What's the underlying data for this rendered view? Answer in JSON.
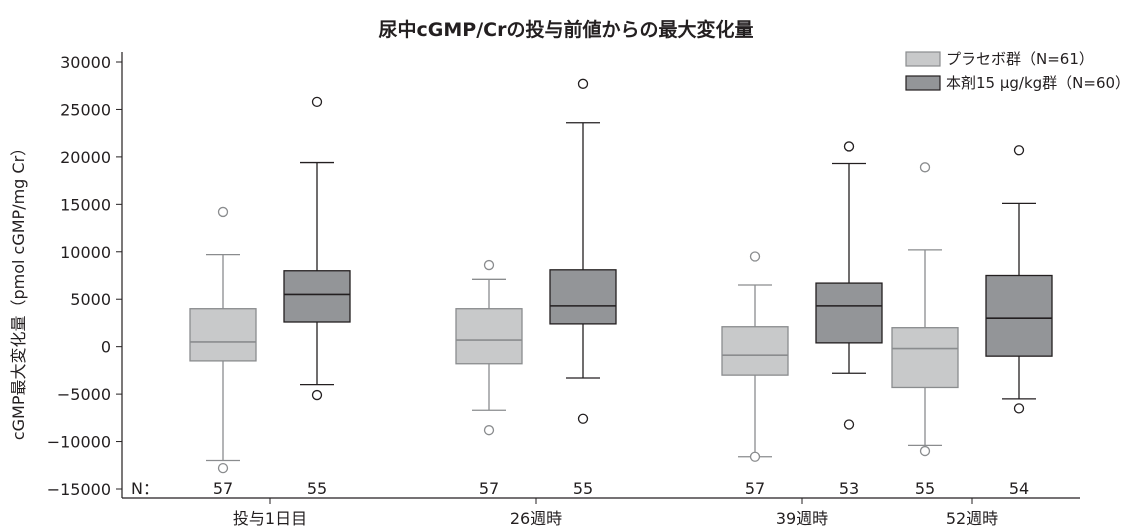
{
  "chart_data": {
    "type": "boxplot",
    "title": "尿中cGMP/Crの投与前値からの最大変化量",
    "ylabel": "cGMP最大変化量（pmol cGMP/mg Cr）",
    "xlabel": "",
    "ylim": [
      -15000,
      30000
    ],
    "yticks": [
      30000,
      25000,
      20000,
      15000,
      10000,
      5000,
      0,
      -5000,
      -10000,
      -15000
    ],
    "ytick_labels": [
      "30000",
      "25000",
      "20000",
      "15000",
      "10000",
      "5000",
      "0",
      "−5000",
      "−10000",
      "−15000"
    ],
    "categories": [
      "投与1日目",
      "26週時",
      "39週時",
      "52週時"
    ],
    "n_label": "N：",
    "legend_position": "top-right",
    "series": [
      {
        "name": "プラセボ群（N=61）",
        "color": "#c8c9ca",
        "boxes": [
          {
            "whislo": -12000,
            "q1": -1500,
            "med": 500,
            "q3": 4000,
            "whishi": 9700,
            "fliers": [
              14200,
              -12800
            ],
            "n": "57"
          },
          {
            "whislo": -6700,
            "q1": -1800,
            "med": 700,
            "q3": 4000,
            "whishi": 7100,
            "fliers": [
              8600,
              -8800
            ],
            "n": "57"
          },
          {
            "whislo": -11600,
            "q1": -3000,
            "med": -900,
            "q3": 2100,
            "whishi": 6500,
            "fliers": [
              9500,
              -11600
            ],
            "n": "57"
          },
          {
            "whislo": -10400,
            "q1": -4300,
            "med": -200,
            "q3": 2000,
            "whishi": 10200,
            "fliers": [
              18900,
              -11000
            ],
            "n": "55"
          }
        ]
      },
      {
        "name": "本剤15 µg/kg群（N=60）",
        "color": "#939598",
        "boxes": [
          {
            "whislo": -4000,
            "q1": 2600,
            "med": 5500,
            "q3": 8000,
            "whishi": 19400,
            "fliers": [
              25800,
              -5100
            ],
            "n": "55"
          },
          {
            "whislo": -3300,
            "q1": 2400,
            "med": 4300,
            "q3": 8100,
            "whishi": 23600,
            "fliers": [
              27700,
              -7600
            ],
            "n": "55"
          },
          {
            "whislo": -2800,
            "q1": 400,
            "med": 4300,
            "q3": 6700,
            "whishi": 19300,
            "fliers": [
              21100,
              -8200
            ],
            "n": "53"
          },
          {
            "whislo": -5500,
            "q1": -1000,
            "med": 3000,
            "q3": 7500,
            "whishi": 15100,
            "fliers": [
              20700,
              -6500
            ],
            "n": "54"
          }
        ]
      }
    ]
  }
}
